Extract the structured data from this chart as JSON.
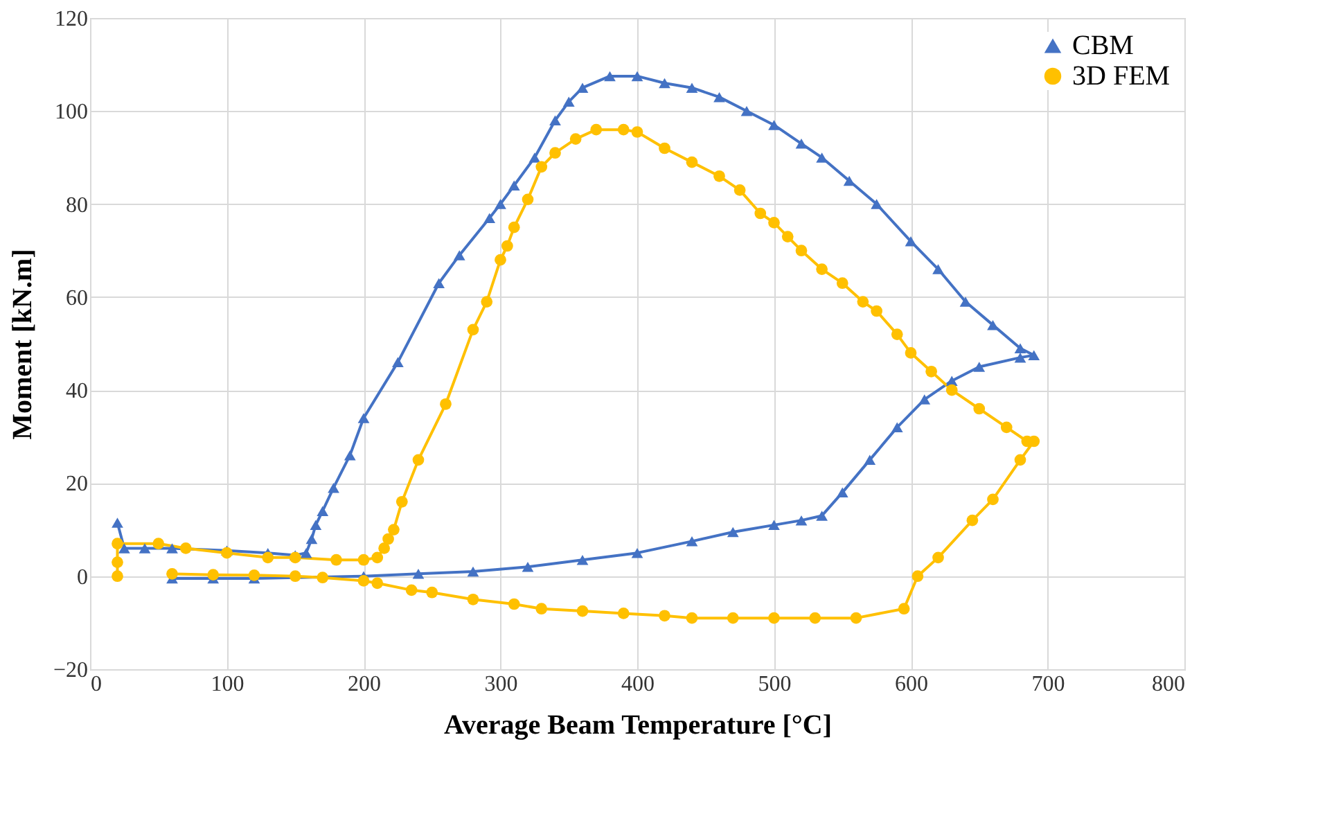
{
  "chart_data": {
    "type": "line",
    "xlabel": "Average Beam Temperature [°C]",
    "ylabel": "Moment [kN.m]",
    "xlim": [
      0,
      800
    ],
    "xticks": [
      0,
      100,
      200,
      300,
      400,
      500,
      600,
      700,
      800
    ],
    "ylim": [
      -20,
      120
    ],
    "yticks": [
      -20,
      0,
      20,
      40,
      60,
      80,
      100,
      120
    ],
    "grid": true,
    "legend": "top right",
    "line_style": "solid",
    "series": [
      {
        "name": "CBM",
        "color": "#4472c4",
        "marker": "triangle",
        "x": [
          20,
          25,
          40,
          60,
          100,
          130,
          150,
          158,
          162,
          165,
          170,
          178,
          190,
          200,
          225,
          255,
          270,
          292,
          300,
          310,
          325,
          340,
          350,
          360,
          380,
          400,
          420,
          440,
          460,
          480,
          500,
          520,
          535,
          555,
          575,
          600,
          620,
          640,
          660,
          680,
          690,
          680,
          650,
          630,
          610,
          590,
          570,
          550,
          535,
          520,
          500,
          470,
          440,
          400,
          360,
          320,
          280,
          240,
          200,
          120,
          90,
          60
        ],
        "values": [
          11.5,
          6,
          6,
          6,
          5.5,
          5,
          4.5,
          5,
          8,
          11,
          14,
          19,
          26,
          34,
          46,
          63,
          69,
          77,
          80,
          84,
          90,
          98,
          102,
          105,
          107.5,
          107.5,
          106,
          105,
          103,
          100,
          97,
          93,
          90,
          85,
          80,
          72,
          66,
          59,
          54,
          49,
          47.5,
          47,
          45,
          42,
          38,
          32,
          25,
          18,
          13,
          12,
          11,
          9.5,
          7.5,
          5,
          3.5,
          2,
          1,
          0.5,
          0,
          -0.5,
          -0.5,
          -0.5
        ]
      },
      {
        "name": "3D FEM",
        "color": "#ffc000",
        "marker": "circle",
        "x": [
          20,
          20,
          20,
          50,
          70,
          100,
          130,
          150,
          180,
          200,
          210,
          215,
          218,
          222,
          228,
          240,
          260,
          280,
          290,
          300,
          305,
          310,
          320,
          330,
          340,
          355,
          370,
          390,
          400,
          420,
          440,
          460,
          475,
          490,
          500,
          510,
          520,
          535,
          550,
          565,
          575,
          590,
          600,
          615,
          630,
          650,
          670,
          685,
          690,
          680,
          660,
          645,
          620,
          605,
          595,
          560,
          530,
          500,
          470,
          440,
          420,
          390,
          360,
          330,
          310,
          280,
          250,
          235,
          210,
          200,
          170,
          150,
          120,
          90,
          60
        ],
        "values": [
          0,
          3,
          7,
          7,
          6,
          5,
          4,
          4,
          3.5,
          3.5,
          4,
          6,
          8,
          10,
          16,
          25,
          37,
          53,
          59,
          68,
          71,
          75,
          81,
          88,
          91,
          94,
          96,
          96,
          95.5,
          92,
          89,
          86,
          83,
          78,
          76,
          73,
          70,
          66,
          63,
          59,
          57,
          52,
          48,
          44,
          40,
          36,
          32,
          29,
          29,
          25,
          16.5,
          12,
          4,
          0,
          -7,
          -9,
          -9,
          -9,
          -9,
          -9,
          -8.5,
          -8,
          -7.5,
          -7,
          -6,
          -5,
          -3.5,
          -3,
          -1.5,
          -1,
          -0.3,
          0,
          0.2,
          0.3,
          0.5
        ]
      }
    ]
  }
}
